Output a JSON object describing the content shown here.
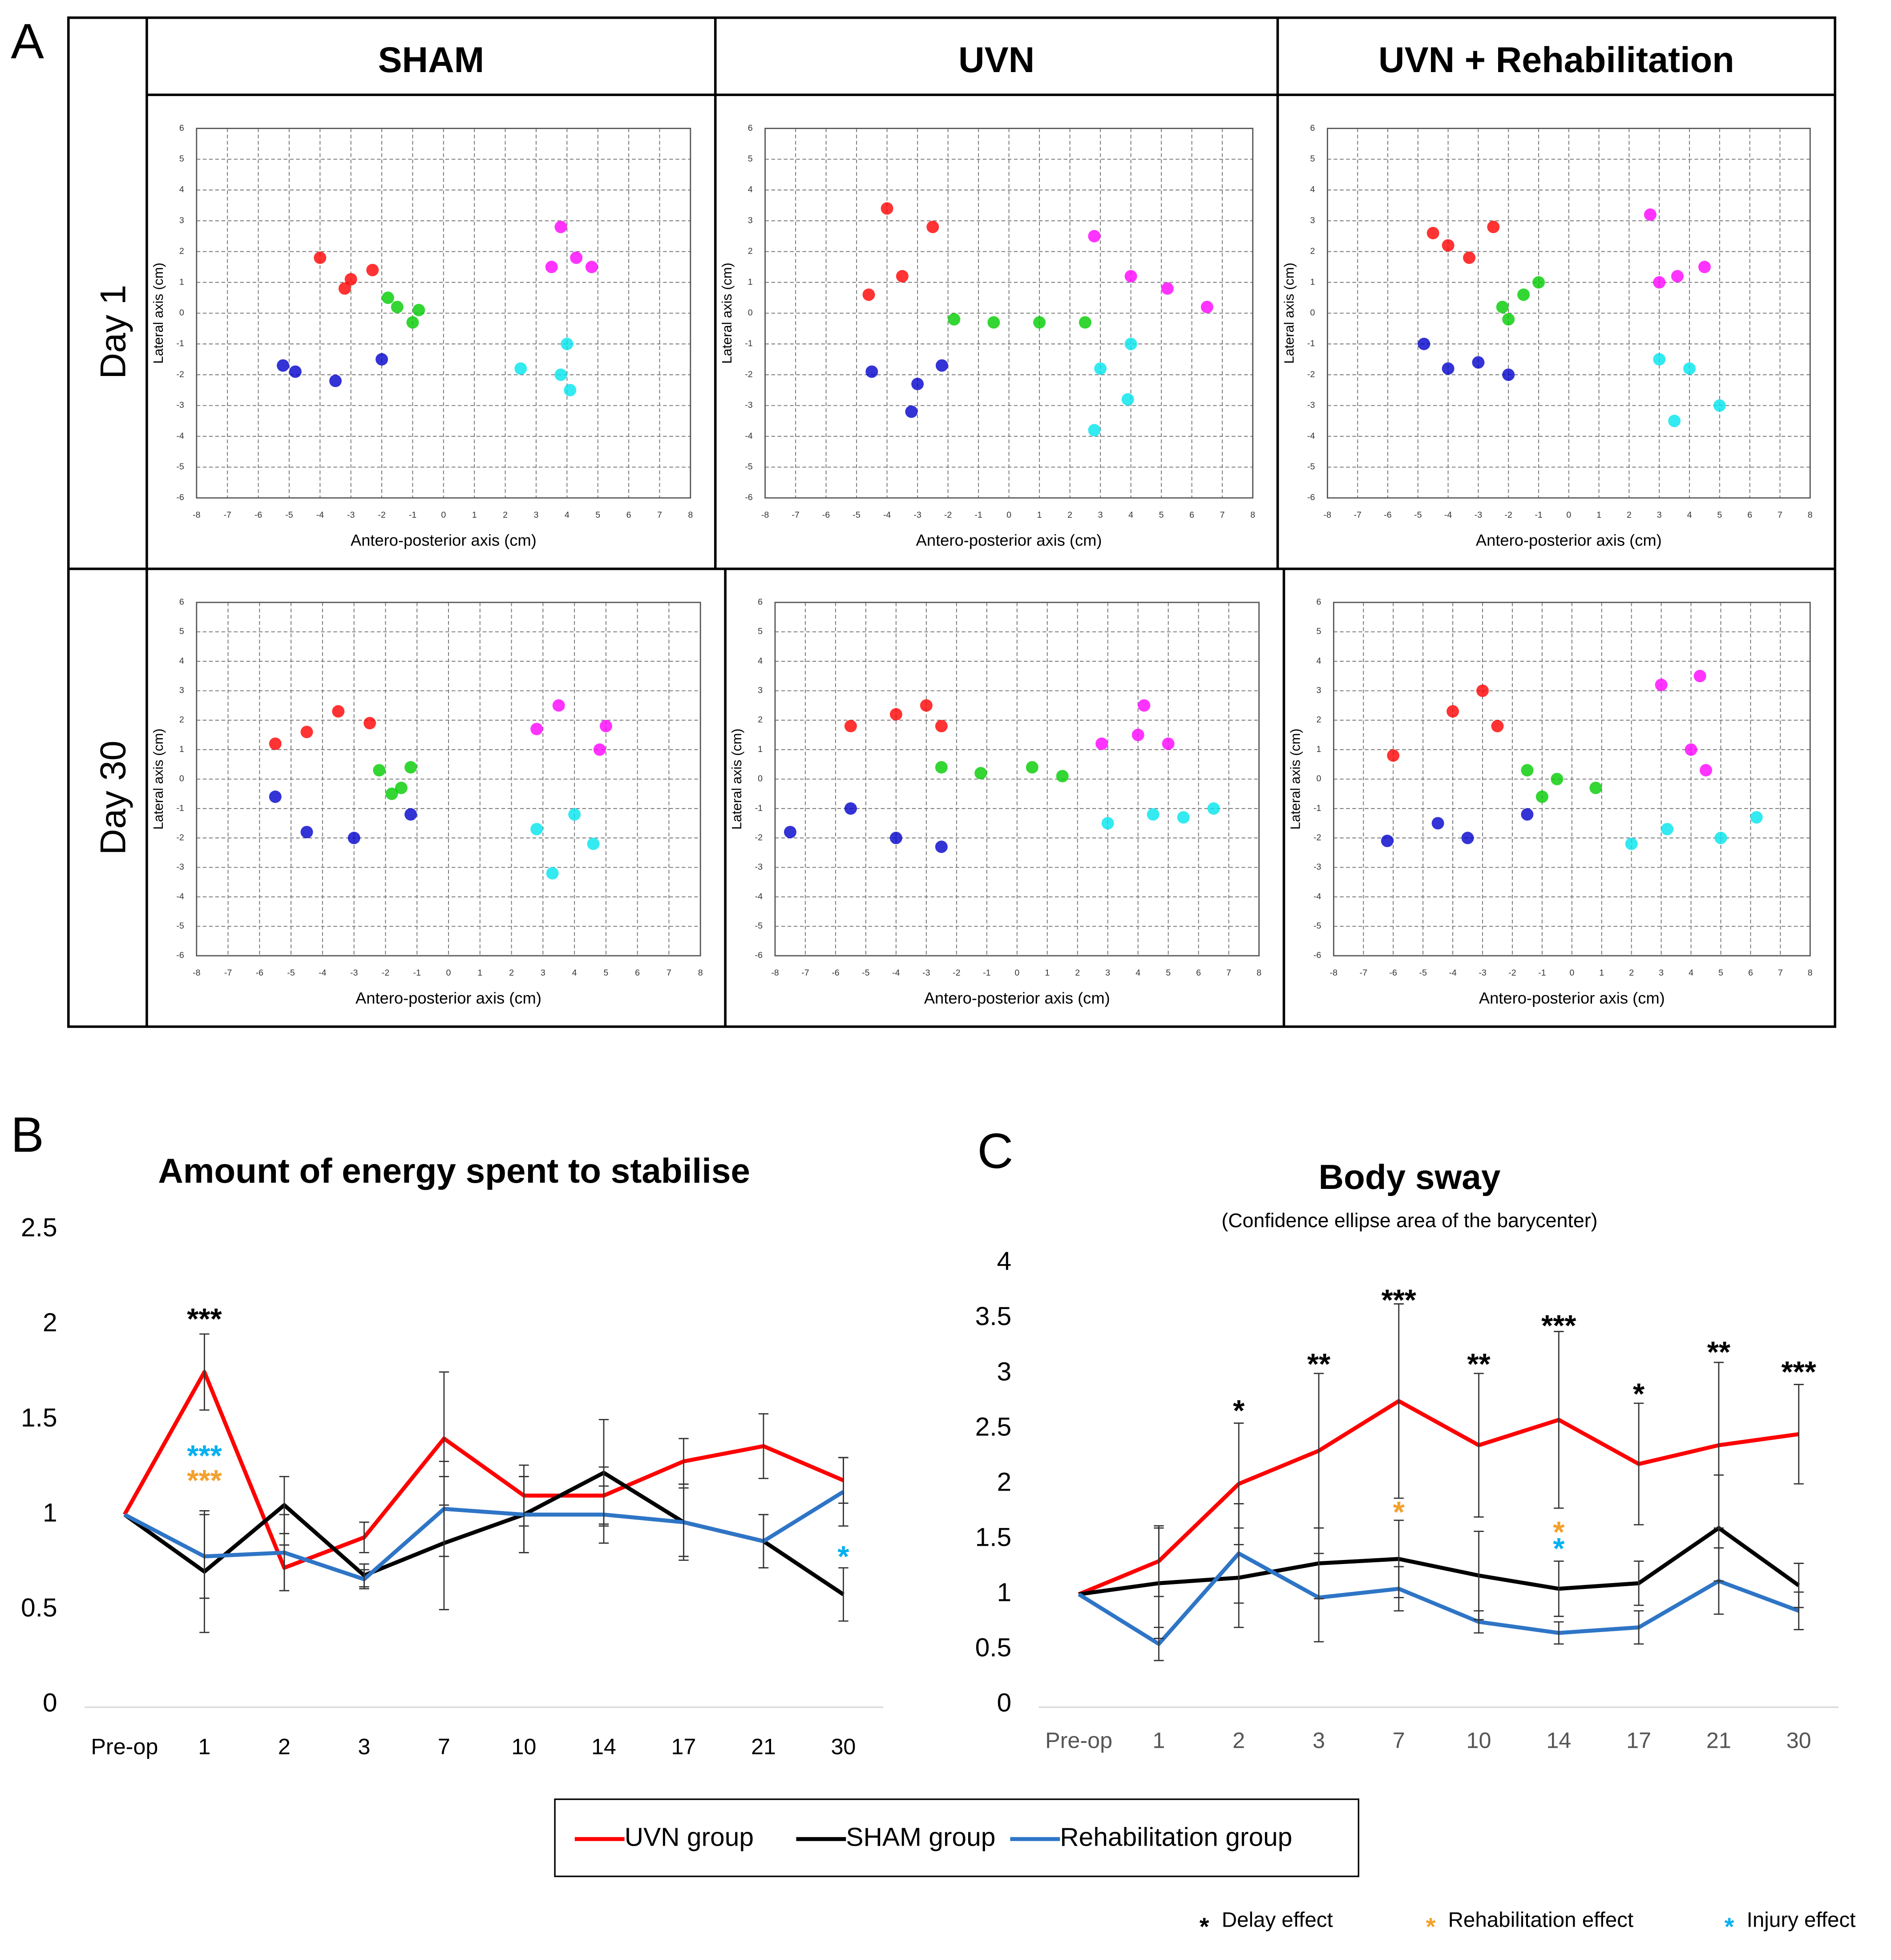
{
  "chart_data": [
    {
      "type": "scatter",
      "panel_label": "A",
      "column_titles": [
        "SHAM",
        "UVN",
        "UVN + Rehabilitation"
      ],
      "row_titles": [
        "Day 1",
        "Day 30"
      ],
      "xlabel": "Antero-posterior axis (cm)",
      "ylabel": "Lateral axis (cm)",
      "xlim": [
        -8,
        8
      ],
      "ylim": [
        -6,
        6
      ],
      "xticks": [
        -8,
        -7,
        -6,
        -5,
        -4,
        -3,
        -2,
        -1,
        0,
        1,
        2,
        3,
        4,
        5,
        6,
        7,
        8
      ],
      "yticks": [
        -6,
        -5,
        -4,
        -3,
        -2,
        -1,
        0,
        1,
        2,
        3,
        4,
        5,
        6
      ],
      "grid": true,
      "plots": [
        {
          "series": [
            {
              "color": "#ff0000",
              "x": [
                -4,
                -3.2,
                -2.3,
                -3
              ],
              "y": [
                1.8,
                0.8,
                1.4,
                1.1
              ]
            },
            {
              "color": "#00cc00",
              "x": [
                -1.5,
                -0.8,
                -1.8,
                -1
              ],
              "y": [
                0.2,
                0.1,
                0.5,
                -0.3
              ]
            },
            {
              "color": "#0000cc",
              "x": [
                -5.2,
                -4.8,
                -2,
                -3.5
              ],
              "y": [
                -1.7,
                -1.9,
                -1.5,
                -2.2
              ]
            },
            {
              "color": "#00e5ee",
              "x": [
                4,
                3.8,
                2.5,
                4.1
              ],
              "y": [
                -1,
                -2,
                -1.8,
                -2.5
              ]
            },
            {
              "color": "#ff00ff",
              "x": [
                3.8,
                4.3,
                4.8,
                3.5
              ],
              "y": [
                2.8,
                1.8,
                1.5,
                1.5
              ]
            }
          ]
        },
        {
          "series": [
            {
              "color": "#ff0000",
              "x": [
                -4.6,
                -3.5,
                -2.5,
                -4
              ],
              "y": [
                0.6,
                1.2,
                2.8,
                3.4
              ]
            },
            {
              "color": "#00cc00",
              "x": [
                -1.8,
                -0.5,
                1,
                2.5
              ],
              "y": [
                -0.2,
                -0.3,
                -0.3,
                -0.3
              ]
            },
            {
              "color": "#0000cc",
              "x": [
                -4.5,
                -3,
                -2.2,
                -3.2
              ],
              "y": [
                -1.9,
                -2.3,
                -1.7,
                -3.2
              ]
            },
            {
              "color": "#00e5ee",
              "x": [
                3,
                4,
                3.9,
                2.8
              ],
              "y": [
                -1.8,
                -1,
                -2.8,
                -3.8
              ]
            },
            {
              "color": "#ff00ff",
              "x": [
                2.8,
                4,
                5.2,
                6.5
              ],
              "y": [
                2.5,
                1.2,
                0.8,
                0.2
              ]
            }
          ]
        },
        {
          "series": [
            {
              "color": "#ff0000",
              "x": [
                -4,
                -3.3,
                -2.5,
                -4.5
              ],
              "y": [
                2.2,
                1.8,
                2.8,
                2.6
              ]
            },
            {
              "color": "#00cc00",
              "x": [
                -2.2,
                -1.5,
                -1,
                -2
              ],
              "y": [
                0.2,
                0.6,
                1,
                -0.2
              ]
            },
            {
              "color": "#0000cc",
              "x": [
                -4.8,
                -4,
                -3,
                -2
              ],
              "y": [
                -1,
                -1.8,
                -1.6,
                -2
              ]
            },
            {
              "color": "#00e5ee",
              "x": [
                3,
                4,
                3.5,
                5
              ],
              "y": [
                -1.5,
                -1.8,
                -3.5,
                -3
              ]
            },
            {
              "color": "#ff00ff",
              "x": [
                3,
                3.6,
                4.5,
                2.7
              ],
              "y": [
                1,
                1.2,
                1.5,
                3.2
              ]
            }
          ]
        },
        {
          "series": [
            {
              "color": "#ff0000",
              "x": [
                -5.5,
                -4.5,
                -3.5,
                -2.5
              ],
              "y": [
                1.2,
                1.6,
                2.3,
                1.9
              ]
            },
            {
              "color": "#00cc00",
              "x": [
                -2.2,
                -1.5,
                -1.2,
                -1.8
              ],
              "y": [
                0.3,
                -0.3,
                0.4,
                -0.5
              ]
            },
            {
              "color": "#0000cc",
              "x": [
                -5.5,
                -4.5,
                -3,
                -1.2
              ],
              "y": [
                -0.6,
                -1.8,
                -2,
                -1.2
              ]
            },
            {
              "color": "#00e5ee",
              "x": [
                2.8,
                4,
                4.6,
                3.3
              ],
              "y": [
                -1.7,
                -1.2,
                -2.2,
                -3.2
              ]
            },
            {
              "color": "#ff00ff",
              "x": [
                2.8,
                3.5,
                5,
                4.8
              ],
              "y": [
                1.7,
                2.5,
                1.8,
                1
              ]
            }
          ]
        },
        {
          "series": [
            {
              "color": "#ff0000",
              "x": [
                -5.5,
                -4,
                -3,
                -2.5
              ],
              "y": [
                1.8,
                2.2,
                2.5,
                1.8
              ]
            },
            {
              "color": "#00cc00",
              "x": [
                -2.5,
                -1.2,
                0.5,
                1.5
              ],
              "y": [
                0.4,
                0.2,
                0.4,
                0.1
              ]
            },
            {
              "color": "#0000cc",
              "x": [
                -7.5,
                -5.5,
                -4,
                -2.5
              ],
              "y": [
                -1.8,
                -1,
                -2,
                -2.3
              ]
            },
            {
              "color": "#00e5ee",
              "x": [
                3,
                4.5,
                5.5,
                6.5
              ],
              "y": [
                -1.5,
                -1.2,
                -1.3,
                -1
              ]
            },
            {
              "color": "#ff00ff",
              "x": [
                2.8,
                4,
                5,
                4.2
              ],
              "y": [
                1.2,
                1.5,
                1.2,
                2.5
              ]
            }
          ]
        },
        {
          "series": [
            {
              "color": "#ff0000",
              "x": [
                -6,
                -4,
                -3,
                -2.5
              ],
              "y": [
                0.8,
                2.3,
                3,
                1.8
              ]
            },
            {
              "color": "#00cc00",
              "x": [
                -1.5,
                -0.5,
                0.8,
                -1
              ],
              "y": [
                0.3,
                0,
                -0.3,
                -0.6
              ]
            },
            {
              "color": "#0000cc",
              "x": [
                -6.2,
                -4.5,
                -3.5,
                -1.5
              ],
              "y": [
                -2.1,
                -1.5,
                -2,
                -1.2
              ]
            },
            {
              "color": "#00e5ee",
              "x": [
                2,
                3.2,
                5,
                6.2
              ],
              "y": [
                -2.2,
                -1.7,
                -2,
                -1.3
              ]
            },
            {
              "color": "#ff00ff",
              "x": [
                3,
                4,
                4.5,
                4.3
              ],
              "y": [
                3.2,
                1,
                0.3,
                3.5
              ]
            }
          ]
        }
      ]
    },
    {
      "type": "line",
      "panel_label": "B",
      "title": "Amount of energy spent to stabilise",
      "categories": [
        "Pre-op",
        "1",
        "2",
        "3",
        "7",
        "10",
        "14",
        "17",
        "21",
        "30"
      ],
      "ylim": [
        0,
        2.5
      ],
      "yticks": [
        0,
        0.5,
        1,
        1.5,
        2,
        2.5
      ],
      "series": [
        {
          "name": "UVN group",
          "color": "#ff0000",
          "values": [
            1,
            1.75,
            0.72,
            0.88,
            1.4,
            1.1,
            1.1,
            1.28,
            1.36,
            1.18
          ],
          "errors": [
            0,
            0.2,
            0.12,
            0.08,
            0.35,
            0.16,
            0.15,
            0.12,
            0.17,
            0.12
          ]
        },
        {
          "name": "SHAM group",
          "color": "#000000",
          "values": [
            1,
            0.7,
            1.05,
            0.68,
            0.85,
            1.0,
            1.22,
            0.96,
            0.86,
            0.58
          ],
          "errors": [
            0,
            0.32,
            0.15,
            0.06,
            0.35,
            0.2,
            0.28,
            0.2,
            0.14,
            0.14
          ]
        },
        {
          "name": "Rehabilitation group",
          "color": "#2e75c6",
          "values": [
            1,
            0.78,
            0.8,
            0.66,
            1.03,
            1.0,
            1.0,
            0.96,
            0.86,
            1.12
          ],
          "errors": [
            0,
            0.22,
            0.2,
            0.05,
            0.25,
            0.2,
            0.15,
            0.18,
            0.14,
            0.18
          ]
        }
      ],
      "annotations": [
        {
          "category": "1",
          "y": 2.05,
          "text": "***",
          "color": "#000000"
        },
        {
          "category": "1",
          "y": 1.33,
          "text": "***",
          "color": "#00b0f0"
        },
        {
          "category": "1",
          "y": 1.2,
          "text": "***",
          "color": "#f4a02c"
        },
        {
          "category": "30",
          "y": 0.8,
          "text": "*",
          "color": "#00b0f0"
        }
      ]
    },
    {
      "type": "line",
      "panel_label": "C",
      "title": "Body sway",
      "subtitle": "(Confidence ellipse area of the barycenter)",
      "categories": [
        "Pre-op",
        "1",
        "2",
        "3",
        "7",
        "10",
        "14",
        "17",
        "21",
        "30"
      ],
      "ylim": [
        0,
        4
      ],
      "yticks": [
        0,
        0.5,
        1,
        1.5,
        2,
        2.5,
        3,
        3.5,
        4
      ],
      "series": [
        {
          "color": "#ff0000",
          "values": [
            1,
            1.3,
            2.0,
            2.3,
            2.75,
            2.35,
            2.58,
            2.18,
            2.35,
            2.45
          ],
          "errors": [
            0,
            0.32,
            0.55,
            0.7,
            0.88,
            0.65,
            0.8,
            0.55,
            0.75,
            0.45
          ]
        },
        {
          "color": "#000000",
          "values": [
            1,
            1.1,
            1.15,
            1.28,
            1.32,
            1.17,
            1.05,
            1.1,
            1.6,
            1.08
          ],
          "errors": [
            0,
            0.5,
            0.45,
            0.32,
            0.35,
            0.4,
            0.25,
            0.2,
            0.48,
            0.2
          ]
        },
        {
          "color": "#2e75c6",
          "values": [
            1,
            0.55,
            1.37,
            0.97,
            1.05,
            0.75,
            0.65,
            0.7,
            1.12,
            0.85
          ],
          "errors": [
            0,
            0.15,
            0.45,
            0.4,
            0.2,
            0.1,
            0.1,
            0.15,
            0.3,
            0.17
          ]
        }
      ],
      "annotations": [
        {
          "category": "2",
          "y": 2.7,
          "text": "*",
          "color": "#000000"
        },
        {
          "category": "3",
          "y": 3.12,
          "text": "**",
          "color": "#000000"
        },
        {
          "category": "7",
          "y": 3.7,
          "text": "***",
          "color": "#000000"
        },
        {
          "category": "10",
          "y": 3.12,
          "text": "**",
          "color": "#000000"
        },
        {
          "category": "14",
          "y": 3.47,
          "text": "***",
          "color": "#000000"
        },
        {
          "category": "17",
          "y": 2.85,
          "text": "*",
          "color": "#000000"
        },
        {
          "category": "21",
          "y": 3.23,
          "text": "**",
          "color": "#000000"
        },
        {
          "category": "30",
          "y": 3.05,
          "text": "***",
          "color": "#000000"
        },
        {
          "category": "7",
          "y": 1.78,
          "text": "*",
          "color": "#f4a02c"
        },
        {
          "category": "14",
          "y": 1.6,
          "text": "*",
          "color": "#f4a02c"
        },
        {
          "category": "14",
          "y": 1.45,
          "text": "*",
          "color": "#00b0f0"
        }
      ]
    }
  ],
  "effect_key": [
    {
      "symbol": "*",
      "label": "Delay effect",
      "color": "#000000"
    },
    {
      "symbol": "*",
      "label": "Rehabilitation effect",
      "color": "#f4a02c"
    },
    {
      "symbol": "*",
      "label": "Injury effect",
      "color": "#00b0f0"
    }
  ]
}
